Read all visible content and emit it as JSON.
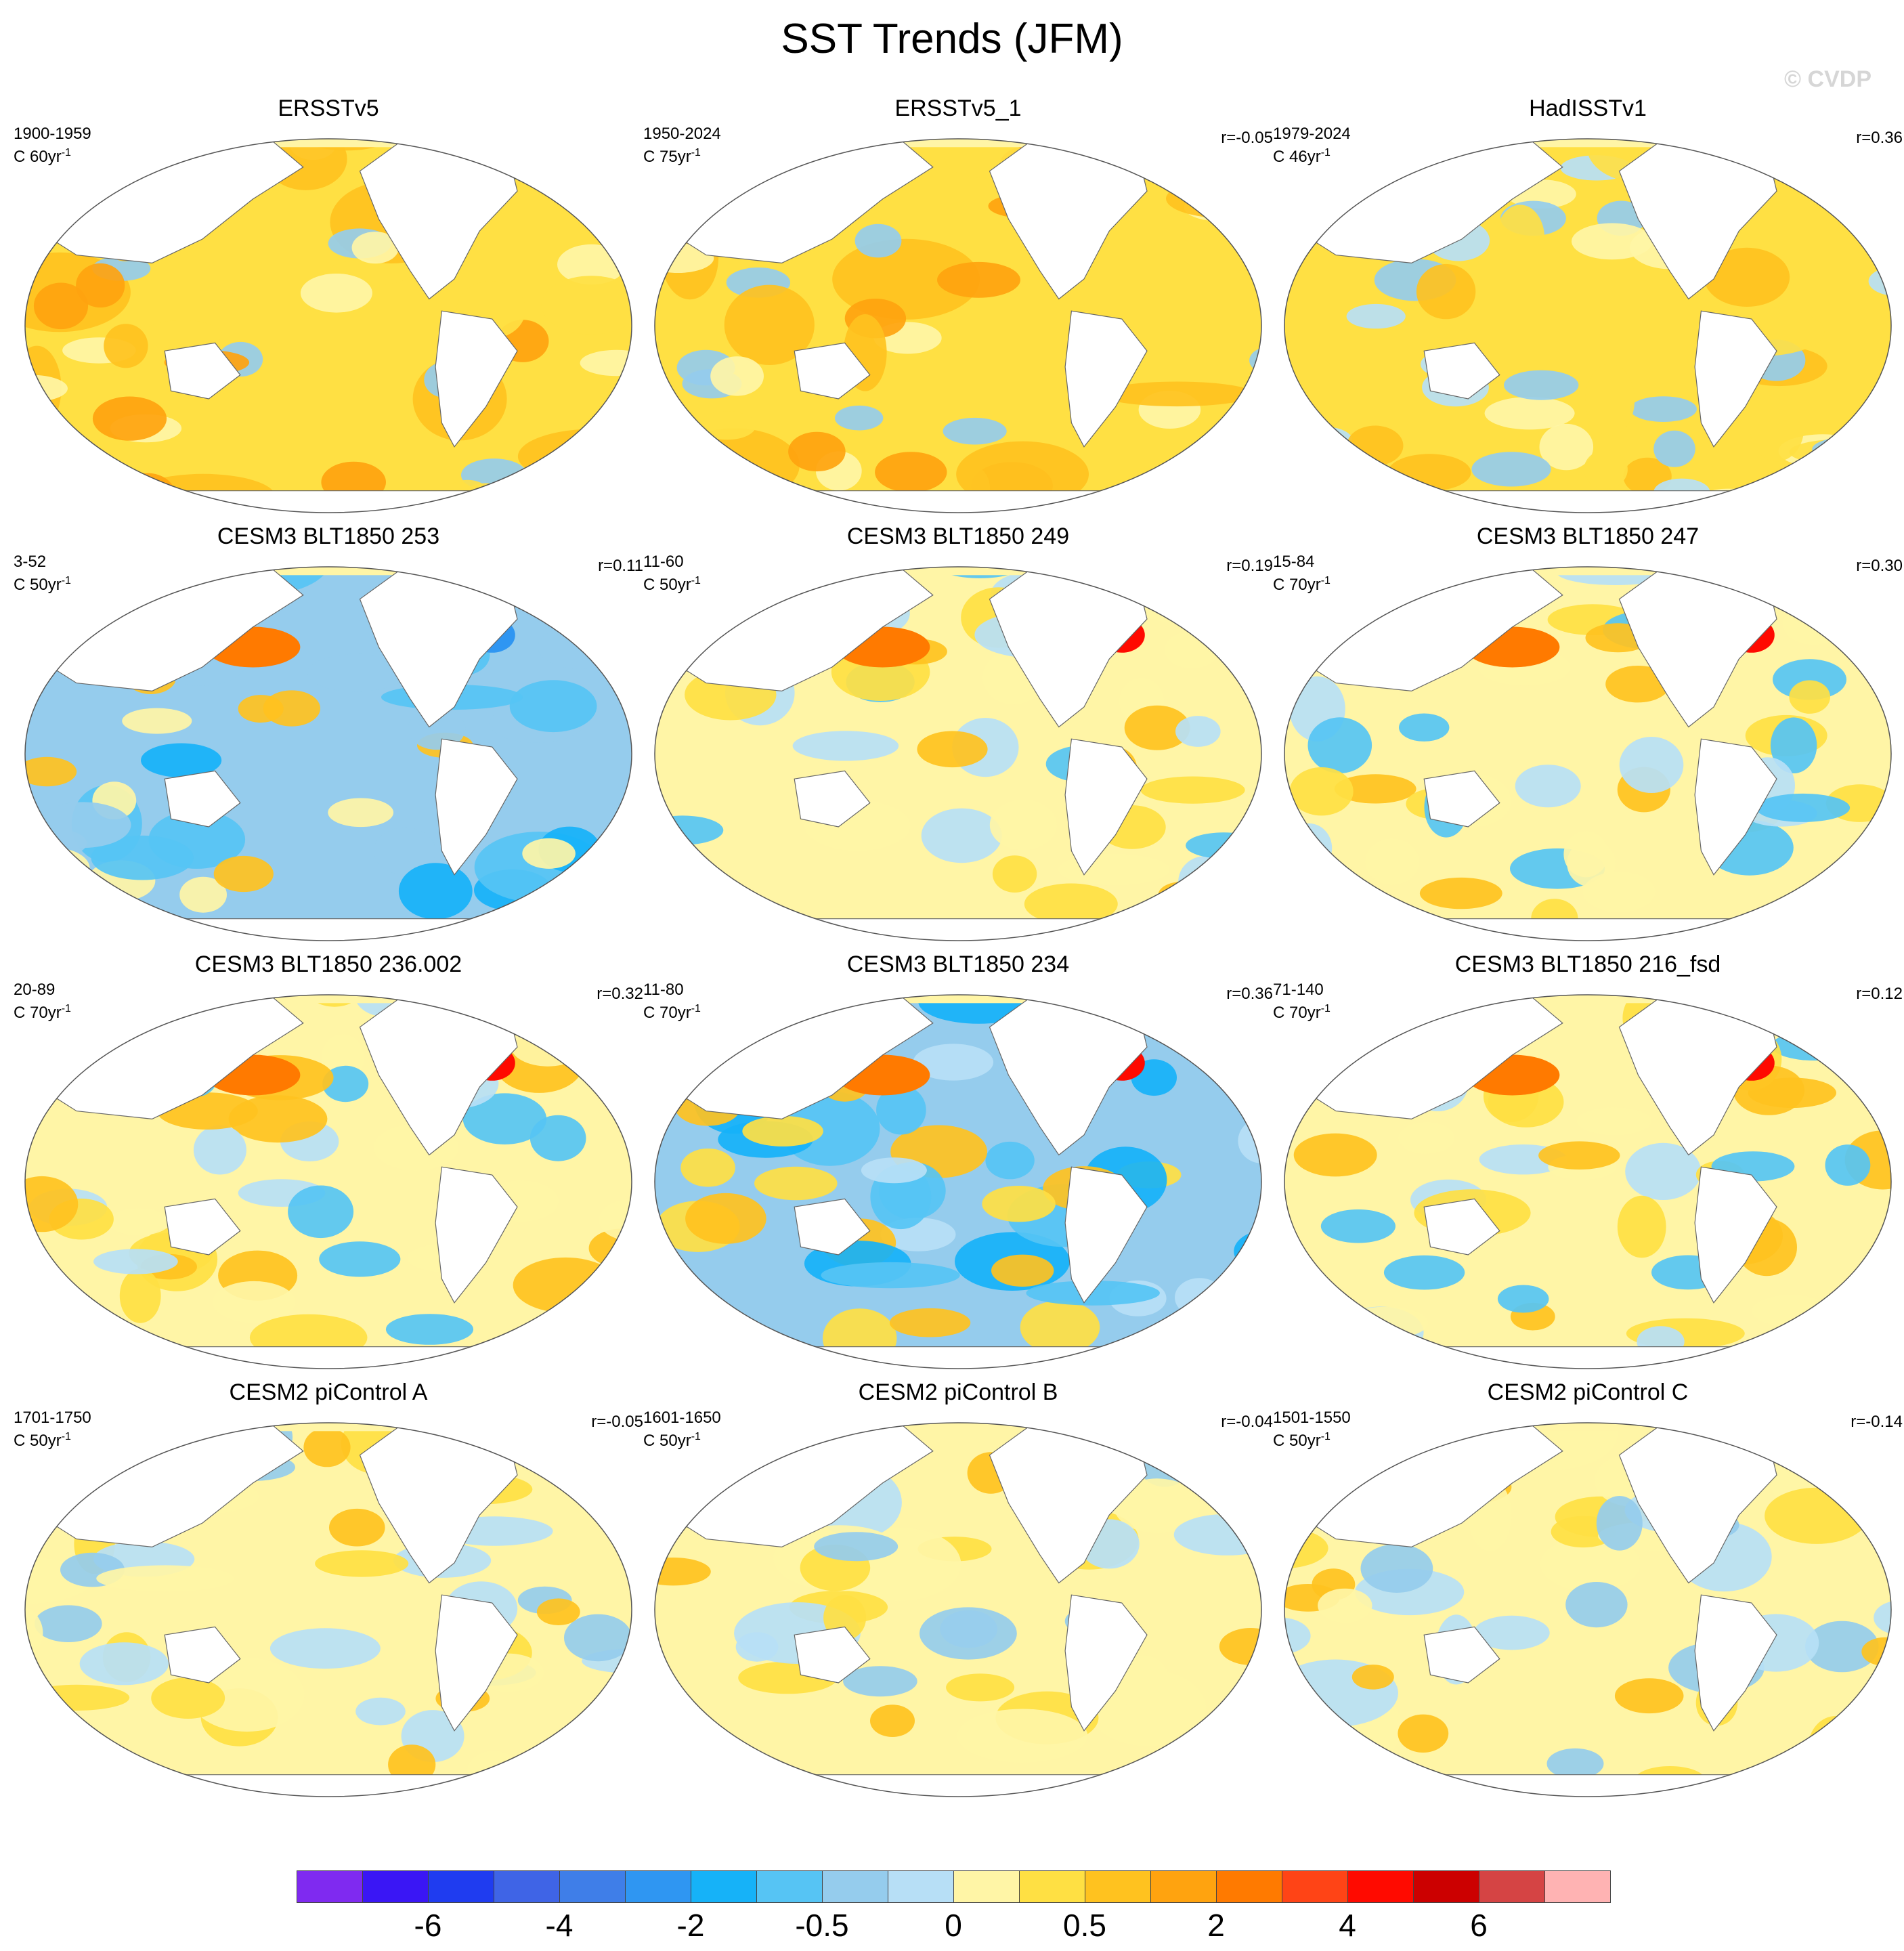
{
  "title": "SST Trends (JFM)",
  "watermark": "© CVDP",
  "colorbar": {
    "colors": [
      "#7f2af0",
      "#3a16f5",
      "#1f3cf0",
      "#3f64e6",
      "#3f7ee8",
      "#2f96f2",
      "#16b2f8",
      "#56c4f4",
      "#95cced",
      "#b7dff6",
      "#fff5a6",
      "#ffe043",
      "#ffc21f",
      "#ffa30f",
      "#ff7a00",
      "#ff4416",
      "#ff0a00",
      "#cc0000",
      "#d54444",
      "#ffb3b3"
    ],
    "tick_labels": [
      {
        "label": "-6",
        "after_box": 2
      },
      {
        "label": "-4",
        "after_box": 4
      },
      {
        "label": "-2",
        "after_box": 6
      },
      {
        "label": "-0.5",
        "after_box": 8
      },
      {
        "label": "0",
        "after_box": 10
      },
      {
        "label": "0.5",
        "after_box": 12
      },
      {
        "label": "2",
        "after_box": 14
      },
      {
        "label": "4",
        "after_box": 16
      },
      {
        "label": "6",
        "after_box": 18
      }
    ]
  },
  "chart_data": [
    {
      "type": "heatmap",
      "title": "ERSSTv5",
      "period": "1900-1959",
      "units": "C 60yr",
      "units_sup": "-1",
      "r": "",
      "pattern": "warm"
    },
    {
      "type": "heatmap",
      "title": "ERSSTv5_1",
      "period": "1950-2024",
      "units": "C 75yr",
      "units_sup": "-1",
      "r": "r=-0.05",
      "pattern": "warm"
    },
    {
      "type": "heatmap",
      "title": "HadISSTv1",
      "period": "1979-2024",
      "units": "C 46yr",
      "units_sup": "-1",
      "r": "r=0.36",
      "pattern": "warm-lanina"
    },
    {
      "type": "heatmap",
      "title": "CESM3 BLT1850 253",
      "period": "3-52",
      "units": "C 50yr",
      "units_sup": "-1",
      "r": "r=0.11",
      "pattern": "cool"
    },
    {
      "type": "heatmap",
      "title": "CESM3 BLT1850 249",
      "period": "11-60",
      "units": "C 50yr",
      "units_sup": "-1",
      "r": "r=0.19",
      "pattern": "mixed"
    },
    {
      "type": "heatmap",
      "title": "CESM3 BLT1850 247",
      "period": "15-84",
      "units": "C 70yr",
      "units_sup": "-1",
      "r": "r=0.30",
      "pattern": "mixed-warmnorth"
    },
    {
      "type": "heatmap",
      "title": "CESM3 BLT1850 236.002",
      "period": "20-89",
      "units": "C 70yr",
      "units_sup": "-1",
      "r": "r=0.32",
      "pattern": "lanina"
    },
    {
      "type": "heatmap",
      "title": "CESM3 BLT1850 234",
      "period": "11-80",
      "units": "C 70yr",
      "units_sup": "-1",
      "r": "r=0.36",
      "pattern": "strong-lanina"
    },
    {
      "type": "heatmap",
      "title": "CESM3 BLT1850 216_fsd",
      "period": "71-140",
      "units": "C 70yr",
      "units_sup": "-1",
      "r": "r=0.12",
      "pattern": "lanina"
    },
    {
      "type": "heatmap",
      "title": "CESM2 piControl A",
      "period": "1701-1750",
      "units": "C 50yr",
      "units_sup": "-1",
      "r": "r=-0.05",
      "pattern": "weak"
    },
    {
      "type": "heatmap",
      "title": "CESM2 piControl B",
      "period": "1601-1650",
      "units": "C 50yr",
      "units_sup": "-1",
      "r": "r=-0.04",
      "pattern": "weak"
    },
    {
      "type": "heatmap",
      "title": "CESM2 piControl C",
      "period": "1501-1550",
      "units": "C 50yr",
      "units_sup": "-1",
      "r": "r=-0.14",
      "pattern": "weak"
    }
  ]
}
